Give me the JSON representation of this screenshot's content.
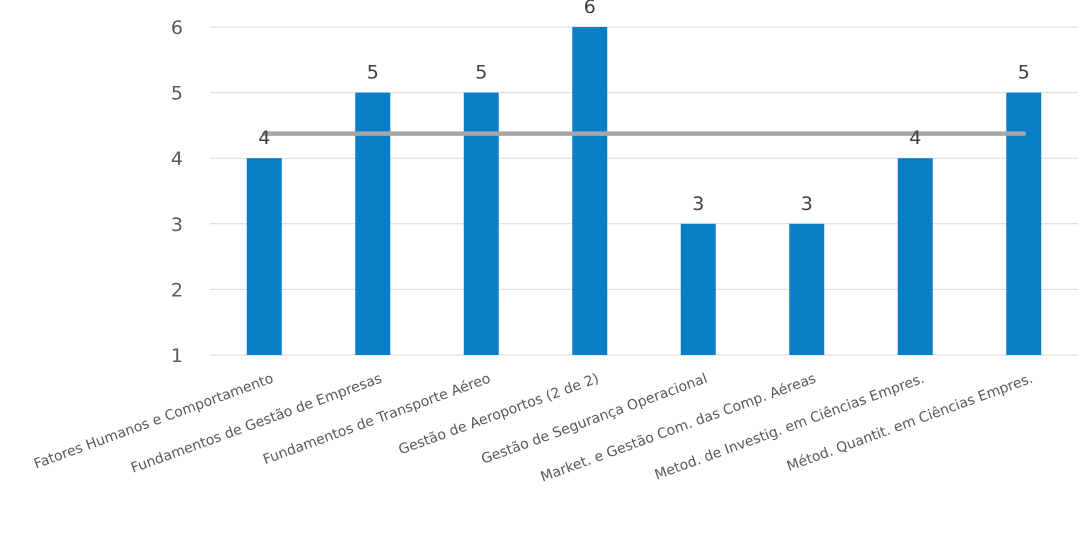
{
  "chart_data": {
    "type": "bar",
    "categories": [
      "Fatores Humanos e Comportamento",
      "Fundamentos de Gestão de Empresas",
      "Fundamentos de Transporte Aéreo",
      "Gestão de Aeroportos (2 de 2)",
      "Gestão de Segurança Operacional",
      "Market. e Gestão Com. das Comp. Aéreas",
      "Metod. de Investig. em Ciências Empres.",
      "Métod. Quantit. em Ciências Empres."
    ],
    "series": [
      {
        "type": "bar",
        "values": [
          4,
          5,
          5,
          6,
          3,
          3,
          4,
          5
        ],
        "color": "#0a7fc7"
      },
      {
        "type": "line",
        "values": [
          4.375,
          4.375,
          4.375,
          4.375,
          4.375,
          4.375,
          4.375,
          4.375
        ],
        "color": "#a6a6a6"
      }
    ],
    "data_labels": [
      "4",
      "5",
      "5",
      "6",
      "3",
      "3",
      "4",
      "5"
    ],
    "y_ticks": [
      "1",
      "2",
      "3",
      "4",
      "5",
      "6"
    ],
    "ylim": [
      1,
      6
    ],
    "grid": true,
    "legend": "none",
    "title": "",
    "xlabel": "",
    "ylabel": ""
  }
}
